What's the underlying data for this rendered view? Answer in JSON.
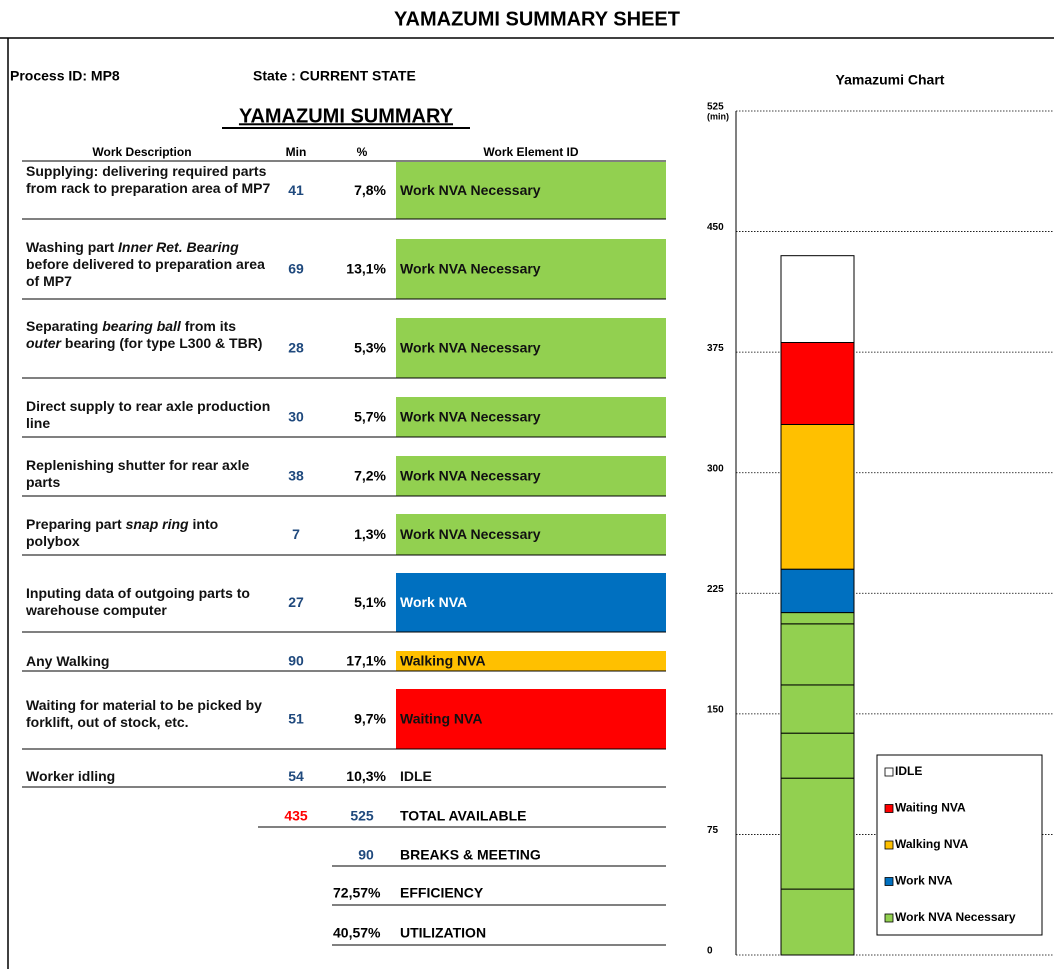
{
  "header": {
    "title": "YAMAZUMI SUMMARY SHEET"
  },
  "info": {
    "process_id": "Process ID: MP8",
    "state": "State : CURRENT STATE"
  },
  "summary": {
    "title": "YAMAZUMI SUMMARY",
    "columns": [
      "Work Description",
      "Min",
      "%",
      "Work Element ID"
    ],
    "rows": [
      {
        "description": [
          {
            "text": "Supplying: delivering required parts from rack to preparation area of MP7"
          }
        ],
        "min": 41,
        "pct": "7,8%",
        "element": "Work NVA Necessary",
        "color": "#92d050"
      },
      {
        "description": [
          {
            "text": "Washing part "
          },
          {
            "text": "Inner Ret. Bearing",
            "italic": true
          },
          {
            "text": " before delivered to preparation area of MP7"
          }
        ],
        "min": 69,
        "pct": "13,1%",
        "element": "Work NVA Necessary",
        "color": "#92d050"
      },
      {
        "description": [
          {
            "text": "Separating "
          },
          {
            "text": "bearing ball",
            "italic": true
          },
          {
            "text": " from its "
          },
          {
            "text": "outer",
            "italic": true
          },
          {
            "text": " bearing (for type L300 & TBR)"
          }
        ],
        "min": 28,
        "pct": "5,3%",
        "element": "Work NVA Necessary",
        "color": "#92d050"
      },
      {
        "description": [
          {
            "text": "Direct supply to rear axle production line"
          }
        ],
        "min": 30,
        "pct": "5,7%",
        "element": "Work NVA Necessary",
        "color": "#92d050"
      },
      {
        "description": [
          {
            "text": "Replenishing shutter for rear axle parts"
          }
        ],
        "min": 38,
        "pct": "7,2%",
        "element": "Work NVA Necessary",
        "color": "#92d050"
      },
      {
        "description": [
          {
            "text": "Preparing part "
          },
          {
            "text": "snap ring",
            "italic": true
          },
          {
            "text": " into polybox"
          }
        ],
        "min": 7,
        "pct": "1,3%",
        "element": "Work NVA Necessary",
        "color": "#92d050"
      },
      {
        "description": [
          {
            "text": "Inputing data of outgoing parts to warehouse computer"
          }
        ],
        "min": 27,
        "pct": "5,1%",
        "element": "Work NVA",
        "color": "#0070c0"
      },
      {
        "description": [
          {
            "text": "Any Walking"
          }
        ],
        "min": 90,
        "pct": "17,1%",
        "element": "Walking NVA",
        "color": "#ffc000"
      },
      {
        "description": [
          {
            "text": "Waiting for material to be picked by forklift, out of stock, etc."
          }
        ],
        "min": 51,
        "pct": "9,7%",
        "element": "Waiting NVA",
        "color": "#ff0000"
      },
      {
        "description": [
          {
            "text": "Worker idling"
          }
        ],
        "min": 54,
        "pct": "10,3%",
        "element": "IDLE"
      }
    ],
    "totals": {
      "used": 435,
      "available": 525,
      "available_label": "TOTAL AVAILABLE",
      "breaks": 90,
      "breaks_label": "BREAKS & MEETING",
      "efficiency": "72,57%",
      "efficiency_label": "EFFICIENCY",
      "utilization": "40,57%",
      "utilization_label": "UTILIZATION"
    }
  },
  "chart_data": {
    "type": "stacked-bar",
    "title": "Yamazumi Chart",
    "y_unit": "(min)",
    "ylim": [
      0,
      525
    ],
    "yticks": [
      0,
      75,
      150,
      225,
      300,
      375,
      450,
      525
    ],
    "grid": true,
    "legend": "bottom-right",
    "series": [
      {
        "name": "Work NVA Necessary",
        "color": "#92d050",
        "values": [
          41,
          69,
          28,
          30,
          38,
          7
        ]
      },
      {
        "name": "Work NVA",
        "color": "#0070c0",
        "values": [
          27
        ]
      },
      {
        "name": "Walking NVA",
        "color": "#ffc000",
        "values": [
          90
        ]
      },
      {
        "name": "Waiting NVA",
        "color": "#ff0000",
        "values": [
          51
        ]
      },
      {
        "name": "IDLE",
        "color": "#ffffff",
        "values": [
          54
        ]
      }
    ]
  }
}
